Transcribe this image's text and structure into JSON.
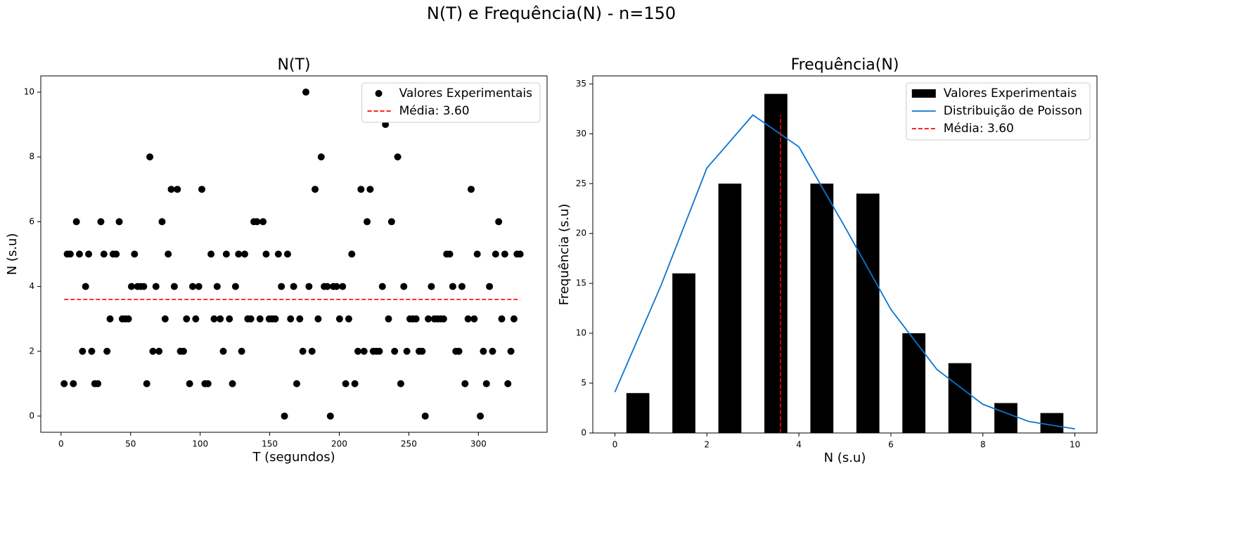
{
  "title": "N(T) e Frequência(N) - n=150",
  "chart_data": [
    {
      "type": "scatter",
      "title": "N(T)",
      "x_label": "T (segundos)",
      "y_label": "N (s.u)",
      "series": [
        {
          "name": "Valores Experimentais",
          "color": "#000000",
          "x": [
            2.2,
            4.4,
            6.6,
            8.8,
            11,
            13.2,
            15.4,
            17.6,
            19.8,
            22,
            24.2,
            26.4,
            28.6,
            30.8,
            33,
            35.2,
            37.4,
            39.6,
            41.8,
            44,
            46.2,
            48.4,
            50.6,
            52.8,
            55,
            57.2,
            59.4,
            61.6,
            63.8,
            66,
            68.2,
            70.4,
            72.6,
            74.8,
            77,
            79.2,
            81.4,
            83.6,
            85.8,
            88,
            90.2,
            92.4,
            94.6,
            96.8,
            99,
            101.2,
            103.4,
            105.6,
            107.8,
            110,
            112.2,
            114.4,
            116.6,
            118.8,
            121,
            123.2,
            125.4,
            127.6,
            129.8,
            132,
            134.2,
            136.4,
            138.6,
            140.8,
            143,
            145.2,
            147.4,
            149.6,
            151.8,
            154,
            156.2,
            158.4,
            160.6,
            162.8,
            165,
            167.2,
            169.4,
            171.6,
            173.8,
            176,
            178.2,
            180.4,
            182.6,
            184.8,
            187,
            189.2,
            191.4,
            193.6,
            195.8,
            198,
            200.2,
            202.4,
            204.6,
            206.8,
            209,
            211.2,
            213.4,
            215.6,
            217.8,
            220,
            222.2,
            224.4,
            226.6,
            228.8,
            231,
            233.2,
            235.4,
            237.6,
            239.8,
            242,
            244.2,
            246.4,
            248.6,
            250.8,
            253,
            255.2,
            257.4,
            259.6,
            261.8,
            264,
            266.2,
            268.4,
            270.6,
            272.8,
            275,
            277.2,
            279.4,
            281.6,
            283.8,
            286,
            288.2,
            290.4,
            292.6,
            294.8,
            297,
            299.2,
            301.4,
            303.6,
            305.8,
            308,
            310.2,
            312.4,
            314.6,
            316.8,
            319,
            321.2,
            323.4,
            325.6,
            327.8,
            330
          ],
          "values": [
            1,
            5,
            5,
            1,
            6,
            5,
            2,
            4,
            5,
            2,
            1,
            1,
            6,
            5,
            2,
            3,
            5,
            5,
            6,
            3,
            3,
            3,
            4,
            5,
            4,
            4,
            4,
            1,
            8,
            2,
            4,
            2,
            6,
            3,
            5,
            7,
            4,
            7,
            2,
            2,
            3,
            1,
            4,
            3,
            4,
            7,
            1,
            1,
            5,
            3,
            4,
            3,
            2,
            5,
            3,
            1,
            4,
            5,
            2,
            5,
            3,
            3,
            6,
            6,
            3,
            6,
            5,
            3,
            3,
            3,
            5,
            4,
            0,
            5,
            3,
            4,
            1,
            3,
            2,
            10,
            4,
            2,
            7,
            3,
            8,
            4,
            4,
            0,
            4,
            4,
            3,
            4,
            1,
            3,
            5,
            1,
            2,
            7,
            2,
            6,
            7,
            2,
            2,
            2,
            4,
            9,
            3,
            6,
            2,
            8,
            1,
            4,
            2,
            3,
            3,
            3,
            2,
            2,
            0,
            3,
            4,
            3,
            3,
            3,
            3,
            5,
            5,
            4,
            2,
            2,
            4,
            1,
            3,
            7,
            3,
            5,
            0,
            2,
            1,
            4,
            2,
            5,
            6,
            3,
            5,
            1,
            2,
            3,
            5,
            5
          ]
        }
      ],
      "mean": {
        "name": "Média: 3.60",
        "color": "#ff0000",
        "value": 3.6
      },
      "xlim": [
        -14.6,
        349.4
      ],
      "xticks": [
        0,
        50,
        100,
        150,
        200,
        250,
        300
      ],
      "ylim": [
        -0.5,
        10.5
      ],
      "yticks": [
        0,
        2,
        4,
        6,
        8,
        10
      ],
      "legend": "upper right"
    },
    {
      "type": "histogram",
      "title": "Frequência(N)",
      "x_label": "N (s.u)",
      "y_label": "Frequência (s.u)",
      "bins": [
        0,
        1,
        2,
        3,
        4,
        5,
        6,
        7,
        8,
        9,
        10
      ],
      "series": [
        {
          "name": "Valores Experimentais",
          "color": "#000000",
          "values": [
            4,
            16,
            25,
            34,
            25,
            24,
            10,
            7,
            3,
            2
          ]
        }
      ],
      "lines": [
        {
          "name": "Distribuição de Poisson",
          "color": "#0a75d0",
          "x": [
            0,
            1,
            2,
            3,
            4,
            5,
            6,
            7,
            8,
            9,
            10
          ],
          "values": [
            4.1,
            14.76,
            26.56,
            31.88,
            28.69,
            20.66,
            12.39,
            6.37,
            2.87,
            1.15,
            0.41
          ]
        }
      ],
      "mean": {
        "name": "Média: 3.60",
        "color": "#ff0000",
        "value": 3.6
      },
      "xlim": [
        -0.48,
        10.48
      ],
      "xticks": [
        0,
        2,
        4,
        6,
        8,
        10
      ],
      "ylim": [
        0,
        35.8
      ],
      "yticks": [
        0,
        5,
        10,
        15,
        20,
        25,
        30,
        35
      ],
      "legend": "upper right"
    }
  ]
}
